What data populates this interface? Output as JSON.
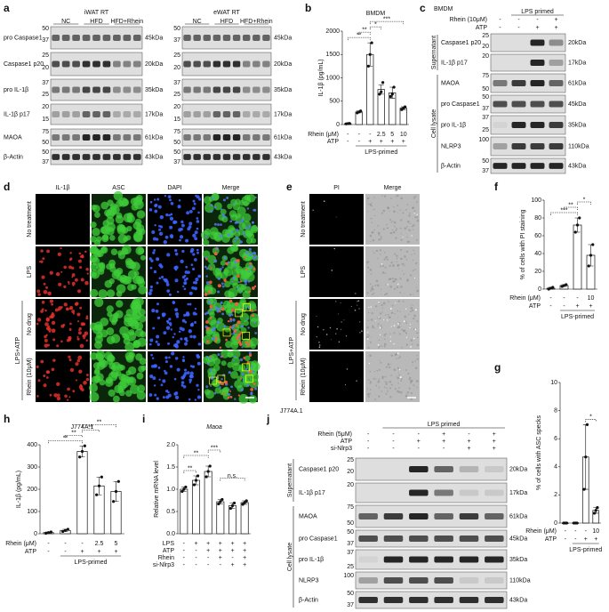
{
  "panel_labels": [
    "a",
    "b",
    "c",
    "d",
    "e",
    "f",
    "g",
    "h",
    "i",
    "j"
  ],
  "blot_a": {
    "blots": [
      {
        "title": "iWAT RT",
        "groups": [
          "NC",
          "HFD",
          "HFD+Rhein"
        ],
        "markers": [
          50,
          37,
          25,
          20,
          37,
          25,
          20,
          15,
          75,
          50,
          50,
          37
        ]
      },
      {
        "title": "eWAT RT",
        "groups": [
          "NC",
          "HFD",
          "HFD+Rhein"
        ],
        "markers": [
          50,
          37,
          25,
          20,
          37,
          25,
          20,
          15,
          75,
          50,
          50,
          37
        ]
      }
    ],
    "proteins": [
      "pro Caspase1",
      "Caspase1 p20",
      "pro IL-1β",
      "IL-1β p17",
      "MAOA",
      "β-Actin"
    ],
    "sizes": [
      "45kDa",
      "20kDa",
      "35kDa",
      "17kDa",
      "61kDa",
      "43kDa"
    ]
  },
  "blot_c": {
    "cell": "BMDM",
    "group": "LPS primed",
    "conditions": [
      {
        "name": "Rhein (10μM)",
        "values": [
          "-",
          "-",
          "-",
          "+"
        ]
      },
      {
        "name": "ATP",
        "values": [
          "-",
          "-",
          "+",
          "+"
        ]
      }
    ],
    "sections": [
      "Supernatant",
      "Cell lysate"
    ],
    "proteins": [
      "Caspase1 p20",
      "IL-1β p17",
      "MAOA",
      "pro Caspase1",
      "pro IL-1β",
      "NLRP3",
      "β-Actin"
    ],
    "sizes": [
      "20kDa",
      "17kDa",
      "61kDa",
      "45kDa",
      "35kDa",
      "110kDa",
      "43kDa"
    ],
    "markers": [
      25,
      20,
      20,
      75,
      50,
      50,
      37,
      37,
      25,
      100,
      50,
      37
    ]
  },
  "images_d": {
    "columns": [
      "IL-1β",
      "ASC",
      "DAPI",
      "Merge"
    ],
    "rows": [
      "No treatment",
      "LPS",
      "No drug",
      "Rhein (10μM)"
    ],
    "group": "LPS+ATP"
  },
  "images_e": {
    "columns": [
      "PI",
      "Merge"
    ],
    "rows": [
      "No treatment",
      "LPS",
      "No drug",
      "Rhein (10μM)"
    ],
    "group": "LPS+ATP"
  },
  "blot_j": {
    "cell": "J774A.1",
    "group": "LPS primed",
    "conditions": [
      {
        "name": "Rhein (5μM)",
        "values": [
          "-",
          "-",
          "-",
          "+",
          "-",
          "+"
        ]
      },
      {
        "name": "ATP",
        "values": [
          "-",
          "-",
          "+",
          "+",
          "+",
          "+"
        ]
      },
      {
        "name": "si-Nlrp3",
        "values": [
          "-",
          "-",
          "-",
          "-",
          "+",
          "+"
        ]
      }
    ],
    "sections": [
      "Supernatant",
      "Cell lysate"
    ],
    "proteins": [
      "Caspase1 p20",
      "IL-1β p17",
      "MAOA",
      "pro Caspase1",
      "pro IL-1β",
      "NLRP3",
      "β-Actin"
    ],
    "sizes": [
      "20kDa",
      "17kDa",
      "61kDa",
      "45kDa",
      "35kDa",
      "110kDa",
      "43kDa"
    ],
    "markers": [
      25,
      20,
      20,
      75,
      50,
      50,
      37,
      37,
      25,
      100,
      50,
      37
    ]
  },
  "chart_data": [
    {
      "type": "bar",
      "title": "BMDM",
      "y_label": "IL-1β (pg/mL)",
      "ylim": [
        0,
        2000
      ],
      "yticks": [
        0,
        500,
        1000,
        1500,
        2000
      ],
      "values": [
        20,
        270,
        1500,
        750,
        680,
        350
      ],
      "errors": [
        10,
        20,
        250,
        100,
        120,
        30
      ],
      "replicates": [
        [
          15,
          20,
          25
        ],
        [
          250,
          270,
          290
        ],
        [
          1250,
          1500,
          1750
        ],
        [
          650,
          700,
          900
        ],
        [
          600,
          650,
          800
        ],
        [
          320,
          350,
          380
        ]
      ],
      "color": "#ffffff",
      "conditions": [
        {
          "name": "Rhein (μM)",
          "values": [
            "-",
            "-",
            "-",
            "2.5",
            "5",
            "10"
          ]
        },
        {
          "name": "ATP",
          "values": [
            "-",
            "-",
            "+",
            "+",
            "+",
            "+"
          ]
        }
      ],
      "group": "LPS-primed",
      "annotations": [
        "**",
        "**",
        "*",
        "***"
      ]
    },
    {
      "type": "bar",
      "y_label": "% of cells with PI staining",
      "ylim": [
        0,
        100
      ],
      "yticks": [
        0,
        20,
        40,
        60,
        80,
        100
      ],
      "values": [
        1,
        4,
        72,
        38
      ],
      "errors": [
        1,
        1,
        8,
        12
      ],
      "replicates": [
        [
          0,
          1,
          2
        ],
        [
          3,
          4,
          5
        ],
        [
          64,
          72,
          80
        ],
        [
          26,
          38,
          50
        ]
      ],
      "color": "#ffffff",
      "conditions": [
        {
          "name": "Rhein (μM)",
          "values": [
            "-",
            "-",
            "-",
            "10"
          ]
        },
        {
          "name": "ATP",
          "values": [
            "-",
            "-",
            "+",
            "+"
          ]
        }
      ],
      "group": "LPS-primed",
      "annotations": [
        "***",
        "**",
        "*"
      ]
    },
    {
      "type": "bar",
      "y_label": "% of cells with ASC specks",
      "ylim": [
        0,
        10
      ],
      "yticks": [
        0,
        2,
        4,
        6,
        8,
        10
      ],
      "values": [
        0,
        0,
        4.7,
        0.9
      ],
      "errors": [
        0,
        0,
        2.3,
        0.2
      ],
      "replicates": [
        [
          0,
          0,
          0
        ],
        [
          0,
          0,
          0
        ],
        [
          2.4,
          4.7,
          7
        ],
        [
          0.7,
          0.9,
          1.1
        ]
      ],
      "color": "#ffffff",
      "conditions": [
        {
          "name": "Rhein (μM)",
          "values": [
            "-",
            "-",
            "-",
            "10"
          ]
        },
        {
          "name": "ATP",
          "values": [
            "-",
            "-",
            "+",
            "+"
          ]
        }
      ],
      "group": "LPS-primed",
      "annotations": [
        "*"
      ]
    },
    {
      "type": "bar",
      "title": "J774A.1",
      "y_label": "IL-1β (pg/mL)",
      "ylim": [
        0,
        400
      ],
      "yticks": [
        0,
        100,
        200,
        300,
        400
      ],
      "values": [
        5,
        15,
        370,
        215,
        190
      ],
      "errors": [
        3,
        5,
        25,
        40,
        45
      ],
      "replicates": [
        [
          2,
          5,
          8
        ],
        [
          10,
          15,
          20
        ],
        [
          345,
          370,
          395
        ],
        [
          175,
          215,
          255
        ],
        [
          145,
          190,
          235
        ]
      ],
      "color": "#ffffff",
      "conditions": [
        {
          "name": "Rhein (μM)",
          "values": [
            "-",
            "-",
            "-",
            "2.5",
            "5"
          ]
        },
        {
          "name": "ATP",
          "values": [
            "-",
            "-",
            "+",
            "+",
            "+"
          ]
        }
      ],
      "group": "LPS-primed",
      "annotations": [
        "**",
        "**",
        "**",
        "**"
      ]
    },
    {
      "type": "bar",
      "title": "Maoa",
      "y_label": "Relative mRNA level",
      "ylim": [
        0,
        2
      ],
      "yticks": [
        {
          "value": 0,
          "label": "0.0"
        },
        0.5,
        {
          "value": 1,
          "label": "1.0"
        },
        1.5,
        {
          "value": 2,
          "label": "2.0"
        }
      ],
      "values": [
        1.0,
        1.2,
        1.4,
        0.72,
        0.63,
        0.7
      ],
      "errors": [
        0.05,
        0.1,
        0.12,
        0.05,
        0.06,
        0.04
      ],
      "replicates": [
        [
          0.95,
          1,
          1.05
        ],
        [
          1.1,
          1.2,
          1.3
        ],
        [
          1.28,
          1.4,
          1.52
        ],
        [
          0.67,
          0.72,
          0.77
        ],
        [
          0.57,
          0.63,
          0.69
        ],
        [
          0.66,
          0.7,
          0.74
        ]
      ],
      "color": "#ffffff",
      "conditions": [
        {
          "name": "LPS",
          "values": [
            "-",
            "+",
            "+",
            "+",
            "+",
            "+"
          ]
        },
        {
          "name": "ATP",
          "values": [
            "-",
            "-",
            "+",
            "+",
            "+",
            "+"
          ]
        },
        {
          "name": "Rhein",
          "values": [
            "-",
            "-",
            "-",
            "+",
            "-",
            "+"
          ]
        },
        {
          "name": "si-Nlrp3",
          "values": [
            "-",
            "-",
            "-",
            "-",
            "+",
            "+"
          ]
        }
      ],
      "annotations": [
        "**",
        "**",
        "***",
        "n.s."
      ]
    }
  ]
}
